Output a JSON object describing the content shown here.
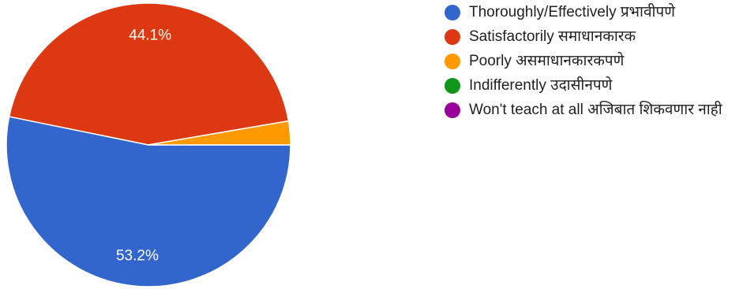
{
  "chart_data": {
    "type": "pie",
    "categories": [
      "Thoroughly/Effectively प्रभावीपणे",
      "Satisfactorily समाधानकारक",
      "Poorly असमाधानकारकपणे",
      "Indifferently उदासीनपणे",
      "Won't teach at all अजिबात शिकवणार नाही"
    ],
    "values": [
      53.2,
      44.1,
      2.7,
      0,
      0
    ],
    "value_labels": [
      "53.2%",
      "44.1%",
      "",
      "",
      ""
    ],
    "colors": [
      "#3366cc",
      "#dc3912",
      "#ff9900",
      "#109618",
      "#990099"
    ],
    "legend_position": "right"
  }
}
